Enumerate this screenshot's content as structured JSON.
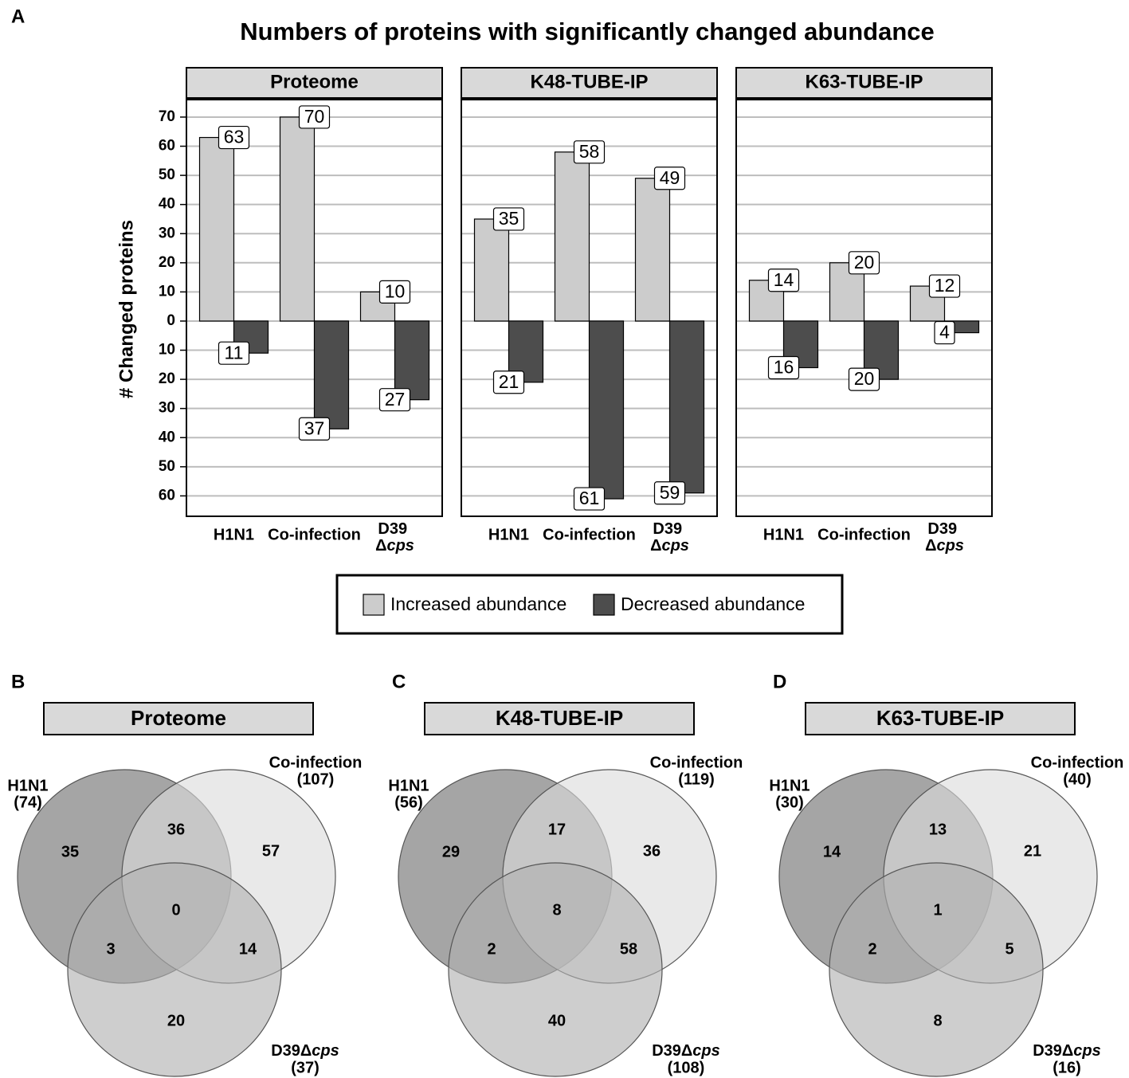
{
  "figure": {
    "panel_labels": [
      "A",
      "B",
      "C",
      "D"
    ]
  },
  "chart_data": {
    "type": "bar",
    "title": "Numbers of proteins with significantly changed abundance",
    "ylabel": "# Changed proteins",
    "categories": [
      "H1N1",
      "Co-infection",
      "D39 Δcps"
    ],
    "ylim": [
      -67,
      76
    ],
    "yticks": [
      {
        "value": -60,
        "label": "60"
      },
      {
        "value": -50,
        "label": "50"
      },
      {
        "value": -40,
        "label": "40"
      },
      {
        "value": -30,
        "label": "30"
      },
      {
        "value": -20,
        "label": "20"
      },
      {
        "value": -10,
        "label": "10"
      },
      0,
      10,
      20,
      30,
      40,
      50,
      60,
      70
    ],
    "grid": true,
    "legend": "bottom",
    "series": [
      {
        "name": "Increased abundance",
        "color": "#cccccc"
      },
      {
        "name": "Decreased abundance",
        "color": "#4d4d4d"
      }
    ],
    "facets": [
      {
        "title": "Proteome",
        "series": [
          {
            "values": [
              63,
              70,
              10
            ]
          },
          {
            "values": [
              -11,
              -37,
              -27
            ],
            "value_labels": [
              "11",
              "37",
              "27"
            ]
          }
        ]
      },
      {
        "title": "K48-TUBE-IP",
        "series": [
          {
            "values": [
              35,
              58,
              49
            ]
          },
          {
            "values": [
              -21,
              -61,
              -59
            ],
            "value_labels": [
              "21",
              "61",
              "59"
            ]
          }
        ]
      },
      {
        "title": "K63-TUBE-IP",
        "series": [
          {
            "values": [
              14,
              20,
              12
            ]
          },
          {
            "values": [
              -16,
              -20,
              -4
            ],
            "value_labels": [
              "16",
              "20",
              "4"
            ]
          }
        ]
      }
    ]
  },
  "venn_diagrams": [
    {
      "title": "Proteome",
      "sets": [
        {
          "name": "H1N1",
          "count": "(74)",
          "color": "#6e6e6e"
        },
        {
          "name": "Co-infection",
          "count": "(107)",
          "color": "#dcdcdc"
        },
        {
          "name": "D39Δcps",
          "count": "(37)",
          "color": "#b0b0b0"
        }
      ],
      "regions": [
        35,
        36,
        57,
        3,
        0,
        14,
        20
      ]
    },
    {
      "title": "K48-TUBE-IP",
      "sets": [
        {
          "name": "H1N1",
          "count": "(56)",
          "color": "#6e6e6e"
        },
        {
          "name": "Co-infection",
          "count": "(119)",
          "color": "#dcdcdc"
        },
        {
          "name": "D39Δcps",
          "count": "(108)",
          "color": "#b0b0b0"
        }
      ],
      "regions": [
        29,
        17,
        36,
        2,
        8,
        58,
        40
      ]
    },
    {
      "title": "K63-TUBE-IP",
      "sets": [
        {
          "name": "H1N1",
          "count": "(30)",
          "color": "#6e6e6e"
        },
        {
          "name": "Co-infection",
          "count": "(40)",
          "color": "#dcdcdc"
        },
        {
          "name": "D39Δcps",
          "count": "(16)",
          "color": "#b0b0b0"
        }
      ],
      "regions": [
        14,
        13,
        21,
        2,
        1,
        5,
        8
      ]
    }
  ]
}
